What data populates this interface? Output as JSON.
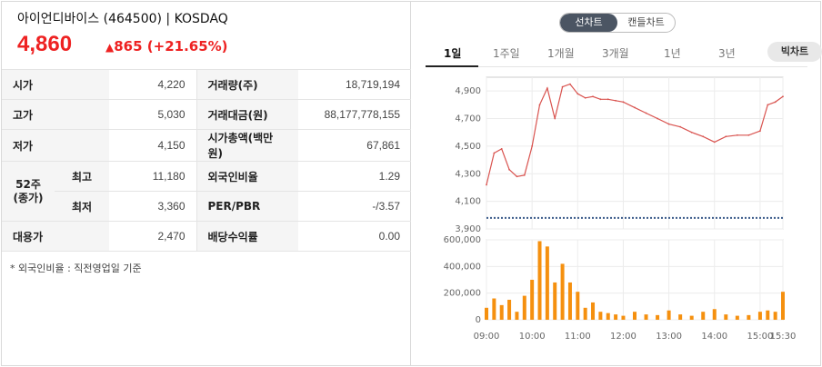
{
  "stock": {
    "title": "아이언디바이스 (464500) | KOSDAQ",
    "price": "4,860",
    "change_icon": "up-triangle-icon",
    "change": "865",
    "change_pct": "(+21.65%)",
    "color_up": "#e22222"
  },
  "info": {
    "rows": [
      {
        "label": "시가",
        "value": "4,220",
        "label2": "거래량(주)",
        "value2": "18,719,194"
      },
      {
        "label": "고가",
        "value": "5,030",
        "label2": "거래대금(원)",
        "value2": "88,177,778,155"
      },
      {
        "label": "저가",
        "value": "4,150",
        "label2": "시가총액(백만원)",
        "value2": "67,861"
      },
      {
        "label": "최고",
        "value": "11,180",
        "label2": "외국인비율",
        "value2": "1.29"
      },
      {
        "label": "최저",
        "value": "3,360",
        "label2": "PER/PBR",
        "value2": "-/3.57"
      },
      {
        "label": "대용가",
        "value": "2,470",
        "label2": "배당수익률",
        "value2": "0.00"
      }
    ],
    "group_label_1": "52주",
    "group_label_2": "(종가)",
    "note": "* 외국인비율 : 직전영업일 기준"
  },
  "chart_toggle": {
    "line": "선차트",
    "candle": "캔들차트"
  },
  "tabs": [
    "1일",
    "1주일",
    "1개월",
    "3개월",
    "1년",
    "3년"
  ],
  "bing_chart": "빅차트",
  "chart_data": [
    {
      "type": "line",
      "title": "",
      "ylim": [
        3900,
        5000
      ],
      "yticks": [
        "4,900",
        "4,700",
        "4,500",
        "4,300",
        "4,100",
        "3,900"
      ],
      "baseline": 3980,
      "x": [
        "09:00",
        "09:10",
        "09:20",
        "09:30",
        "09:40",
        "09:50",
        "10:00",
        "10:10",
        "10:20",
        "10:30",
        "10:40",
        "10:50",
        "11:00",
        "11:10",
        "11:20",
        "11:30",
        "11:40",
        "11:50",
        "12:00",
        "12:15",
        "12:30",
        "12:45",
        "13:00",
        "13:15",
        "13:30",
        "13:45",
        "14:00",
        "14:15",
        "14:30",
        "14:45",
        "15:00",
        "15:10",
        "15:20",
        "15:30"
      ],
      "y": [
        4220,
        4450,
        4480,
        4330,
        4280,
        4290,
        4500,
        4800,
        4920,
        4700,
        4930,
        4950,
        4880,
        4850,
        4860,
        4840,
        4840,
        4830,
        4820,
        4780,
        4740,
        4700,
        4660,
        4640,
        4600,
        4570,
        4530,
        4570,
        4580,
        4580,
        4610,
        4800,
        4820,
        4860
      ],
      "series_color": "#d9534f",
      "baseline_color": "#3b5b8a"
    },
    {
      "type": "bar",
      "title": "",
      "ylim": [
        0,
        600000
      ],
      "yticks": [
        "600,000",
        "400,000",
        "200,000",
        "0"
      ],
      "xticks": [
        "09:00",
        "10:00",
        "11:00",
        "12:00",
        "13:00",
        "14:00",
        "15:00",
        "15:30"
      ],
      "x": [
        "09:00",
        "09:10",
        "09:20",
        "09:30",
        "09:40",
        "09:50",
        "10:00",
        "10:10",
        "10:20",
        "10:30",
        "10:40",
        "10:50",
        "11:00",
        "11:10",
        "11:20",
        "11:30",
        "11:40",
        "11:50",
        "12:00",
        "12:15",
        "12:30",
        "12:45",
        "13:00",
        "13:15",
        "13:30",
        "13:45",
        "14:00",
        "14:15",
        "14:30",
        "14:45",
        "15:00",
        "15:10",
        "15:20",
        "15:30"
      ],
      "values": [
        90000,
        160000,
        110000,
        150000,
        60000,
        180000,
        300000,
        590000,
        550000,
        280000,
        420000,
        280000,
        210000,
        90000,
        130000,
        60000,
        50000,
        40000,
        30000,
        60000,
        40000,
        35000,
        70000,
        40000,
        30000,
        60000,
        80000,
        40000,
        30000,
        35000,
        60000,
        70000,
        60000,
        210000
      ],
      "series_color": "#f5900f"
    }
  ]
}
